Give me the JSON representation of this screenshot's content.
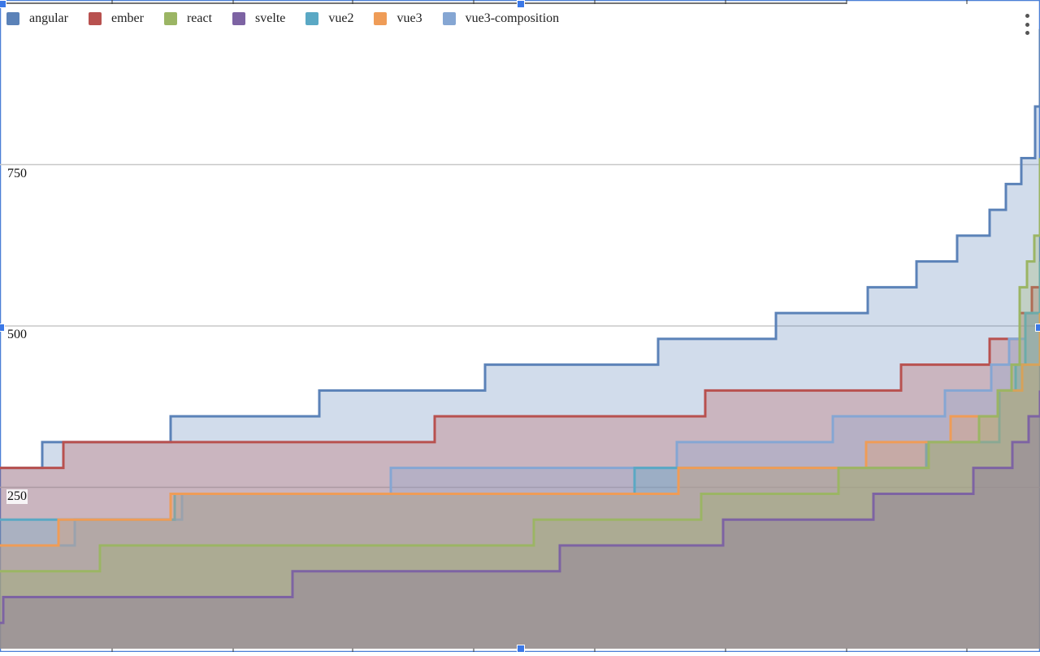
{
  "chart_data": {
    "type": "area",
    "step": true,
    "xlim": [
      0,
      1280
    ],
    "ylim": [
      0,
      1000
    ],
    "y_ticks": [
      250,
      500,
      750
    ],
    "y_tick_labels": [
      "250",
      "500",
      "750"
    ],
    "grid": true,
    "legend_position": "top-left",
    "series": [
      {
        "name": "angular",
        "color": "#5b82b8",
        "x": [
          0,
          52,
          210,
          393,
          597,
          810,
          955,
          1068,
          1128,
          1178,
          1218,
          1238,
          1257,
          1274,
          1280
        ],
        "values": [
          280,
          320,
          360,
          400,
          440,
          480,
          520,
          560,
          600,
          640,
          680,
          720,
          760,
          840,
          960
        ]
      },
      {
        "name": "ember",
        "color": "#b8514f",
        "x": [
          0,
          78,
          535,
          868,
          1109,
          1218,
          1240,
          1255,
          1270,
          1280
        ],
        "values": [
          280,
          320,
          360,
          400,
          440,
          480,
          480,
          520,
          560,
          600
        ]
      },
      {
        "name": "react",
        "color": "#9bb564",
        "x": [
          0,
          123,
          657,
          863,
          1032,
          1143,
          1205,
          1228,
          1245,
          1255,
          1264,
          1273,
          1280
        ],
        "values": [
          120,
          160,
          200,
          240,
          280,
          320,
          360,
          400,
          440,
          560,
          600,
          640,
          760
        ]
      },
      {
        "name": "svelte",
        "color": "#7d63a3",
        "x": [
          0,
          4,
          360,
          689,
          890,
          1075,
          1198,
          1246,
          1266,
          1280
        ],
        "values": [
          40,
          80,
          120,
          160,
          200,
          240,
          280,
          320,
          360,
          400
        ]
      },
      {
        "name": "vue2",
        "color": "#5aa8c4",
        "x": [
          0,
          215,
          481,
          781,
          1031,
          1140,
          1230,
          1250,
          1262,
          1280
        ],
        "values": [
          200,
          240,
          240,
          280,
          280,
          320,
          400,
          440,
          520,
          600
        ]
      },
      {
        "name": "vue3",
        "color": "#ef9c57",
        "x": [
          0,
          72,
          210,
          546,
          835,
          1066,
          1170,
          1228,
          1258,
          1280
        ],
        "values": [
          160,
          200,
          240,
          240,
          280,
          320,
          360,
          400,
          440,
          520
        ]
      },
      {
        "name": "vue3-composition",
        "color": "#85a6d3",
        "x": [
          0,
          92,
          224,
          481,
          833,
          1025,
          1163,
          1220,
          1242,
          1262,
          1280
        ],
        "values": [
          160,
          200,
          240,
          280,
          320,
          360,
          400,
          440,
          480,
          520,
          560
        ]
      }
    ]
  }
}
